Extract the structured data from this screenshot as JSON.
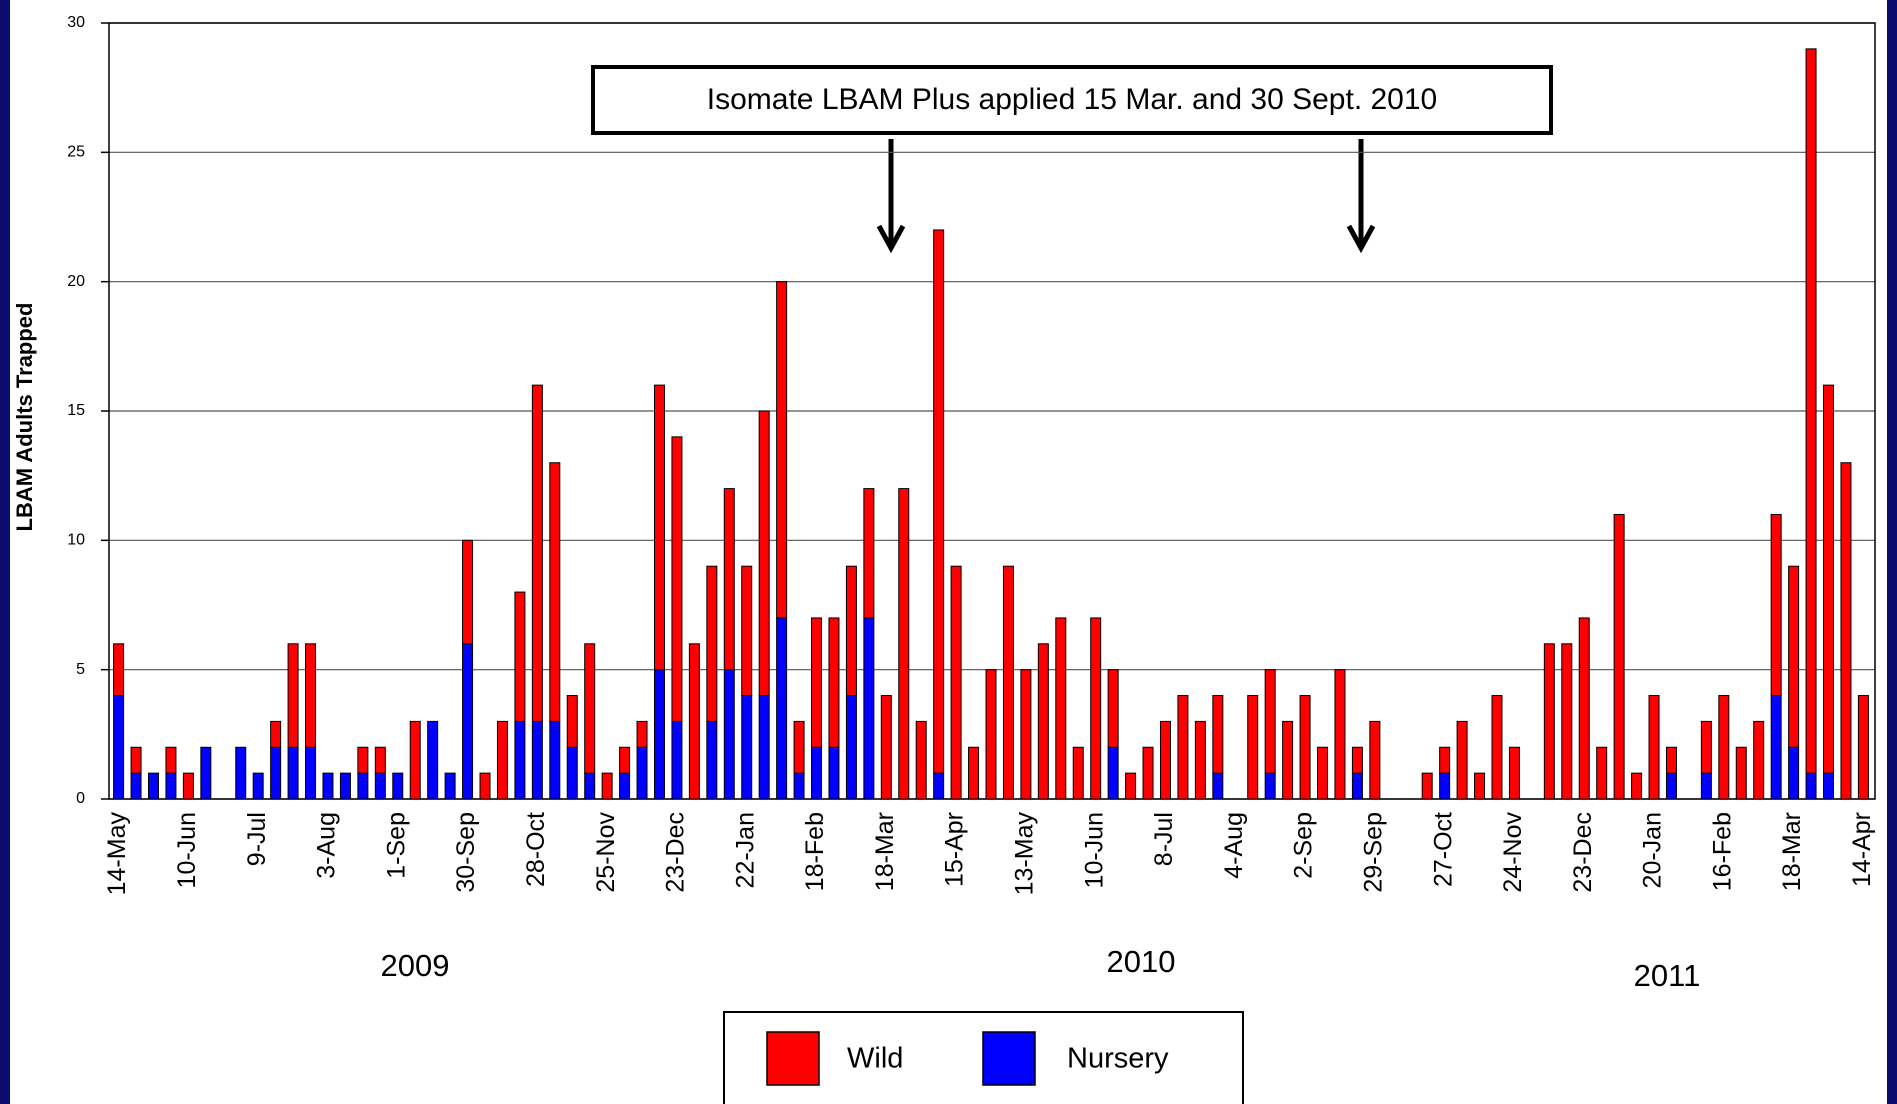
{
  "chart_data": {
    "type": "bar",
    "stacked": true,
    "y_label": "LBAM Adults Trapped",
    "annotation": "Isomate LBAM Plus applied 15 Mar. and 30 Sept. 2010",
    "year_labels": [
      "2009",
      "2010",
      "2011"
    ],
    "categories": [
      "14-May",
      null,
      null,
      null,
      "10-Jun",
      null,
      null,
      null,
      "9-Jul",
      null,
      null,
      null,
      "3-Aug",
      null,
      null,
      null,
      "1-Sep",
      null,
      null,
      null,
      "30-Sep",
      null,
      null,
      null,
      "28-Oct",
      null,
      null,
      null,
      "25-Nov",
      null,
      null,
      null,
      "23-Dec",
      null,
      null,
      null,
      "22-Jan",
      null,
      null,
      null,
      "18-Feb",
      null,
      null,
      null,
      "18-Mar",
      null,
      null,
      null,
      "15-Apr",
      null,
      null,
      null,
      "13-May",
      null,
      null,
      null,
      "10-Jun",
      null,
      null,
      null,
      "8-Jul",
      null,
      null,
      null,
      "4-Aug",
      null,
      null,
      null,
      "2-Sep",
      null,
      null,
      null,
      "29-Sep",
      null,
      null,
      null,
      "27-Oct",
      null,
      null,
      null,
      "24-Nov",
      null,
      null,
      null,
      "23-Dec",
      null,
      null,
      null,
      "20-Jan",
      null,
      null,
      null,
      "16-Feb",
      null,
      null,
      null,
      "18-Mar",
      null,
      null,
      null,
      "14-Apr"
    ],
    "series": [
      {
        "name": "Wild",
        "color": "#ff0000",
        "values": [
          2,
          1,
          0,
          1,
          1,
          0,
          0,
          0,
          0,
          1,
          4,
          4,
          0,
          0,
          1,
          1,
          0,
          3,
          0,
          0,
          4,
          1,
          3,
          5,
          13,
          10,
          2,
          5,
          1,
          1,
          1,
          11,
          11,
          6,
          6,
          7,
          5,
          11,
          13,
          2,
          5,
          5,
          5,
          5,
          4,
          12,
          3,
          21,
          9,
          2,
          5,
          9,
          5,
          6,
          7,
          2,
          7,
          3,
          1,
          2,
          3,
          4,
          3,
          3,
          0,
          4,
          4,
          3,
          4,
          2,
          5,
          1,
          3,
          0,
          0,
          1,
          1,
          3,
          1,
          4,
          2,
          0,
          6,
          6,
          7,
          2,
          11,
          1,
          4,
          1,
          0,
          2,
          4,
          2,
          3,
          7,
          7,
          28,
          15,
          13,
          4
        ]
      },
      {
        "name": "Nursery",
        "color": "#0000ff",
        "values": [
          4,
          1,
          1,
          1,
          0,
          2,
          0,
          2,
          1,
          2,
          2,
          2,
          1,
          1,
          1,
          1,
          1,
          0,
          3,
          1,
          6,
          0,
          0,
          3,
          3,
          3,
          2,
          1,
          0,
          1,
          2,
          5,
          3,
          0,
          3,
          5,
          4,
          4,
          7,
          1,
          2,
          2,
          4,
          7,
          0,
          0,
          0,
          1,
          0,
          0,
          0,
          0,
          0,
          0,
          0,
          0,
          0,
          2,
          0,
          0,
          0,
          0,
          0,
          1,
          0,
          0,
          1,
          0,
          0,
          0,
          0,
          1,
          0,
          0,
          0,
          0,
          1,
          0,
          0,
          0,
          0,
          0,
          0,
          0,
          0,
          0,
          0,
          0,
          0,
          1,
          0,
          1,
          0,
          0,
          0,
          4,
          2,
          1,
          1,
          0,
          0
        ]
      }
    ],
    "ylim": [
      0,
      30
    ],
    "yticks": [
      0,
      5,
      10,
      15,
      20,
      25,
      30
    ],
    "grid": true
  }
}
